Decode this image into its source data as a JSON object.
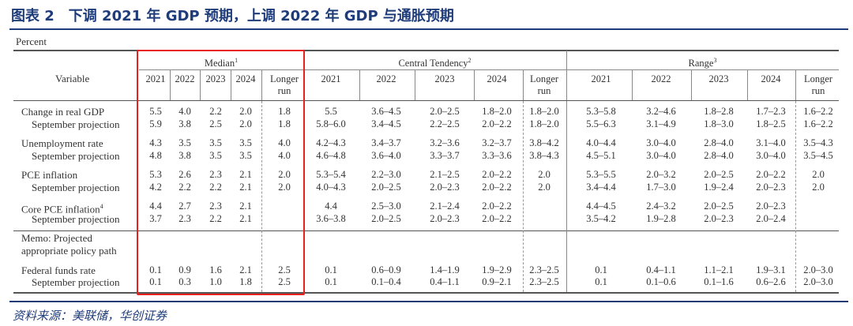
{
  "title": "图表 2　下调 2021 年 GDP 预期，上调 2022 年 GDP 与通胀预期",
  "unit": "Percent",
  "variable_header": "Variable",
  "groups": [
    {
      "name": "Median",
      "note": "1"
    },
    {
      "name": "Central Tendency",
      "note": "2"
    },
    {
      "name": "Range",
      "note": "3"
    }
  ],
  "sub_columns": [
    "2021",
    "2022",
    "2023",
    "2024",
    "Longer run"
  ],
  "rows": [
    {
      "label": "Change in real GDP",
      "indent": false,
      "median": [
        "5.5",
        "4.0",
        "2.2",
        "2.0",
        "1.8"
      ],
      "central": [
        "5.5",
        "3.6–4.5",
        "2.0–2.5",
        "1.8–2.0",
        "1.8–2.0"
      ],
      "range": [
        "5.3–5.8",
        "3.2–4.6",
        "1.8–2.8",
        "1.7–2.3",
        "1.6–2.2"
      ]
    },
    {
      "label": "September projection",
      "indent": true,
      "median": [
        "5.9",
        "3.8",
        "2.5",
        "2.0",
        "1.8"
      ],
      "central": [
        "5.8–6.0",
        "3.4–4.5",
        "2.2–2.5",
        "2.0–2.2",
        "1.8–2.0"
      ],
      "range": [
        "5.5–6.3",
        "3.1–4.9",
        "1.8–3.0",
        "1.8–2.5",
        "1.6–2.2"
      ]
    },
    {
      "label": "Unemployment rate",
      "indent": false,
      "median": [
        "4.3",
        "3.5",
        "3.5",
        "3.5",
        "4.0"
      ],
      "central": [
        "4.2–4.3",
        "3.4–3.7",
        "3.2–3.6",
        "3.2–3.7",
        "3.8–4.2"
      ],
      "range": [
        "4.0–4.4",
        "3.0–4.0",
        "2.8–4.0",
        "3.1–4.0",
        "3.5–4.3"
      ]
    },
    {
      "label": "September projection",
      "indent": true,
      "median": [
        "4.8",
        "3.8",
        "3.5",
        "3.5",
        "4.0"
      ],
      "central": [
        "4.6–4.8",
        "3.6–4.0",
        "3.3–3.7",
        "3.3–3.6",
        "3.8–4.3"
      ],
      "range": [
        "4.5–5.1",
        "3.0–4.0",
        "2.8–4.0",
        "3.0–4.0",
        "3.5–4.5"
      ]
    },
    {
      "label": "PCE inflation",
      "indent": false,
      "median": [
        "5.3",
        "2.6",
        "2.3",
        "2.1",
        "2.0"
      ],
      "central": [
        "5.3–5.4",
        "2.2–3.0",
        "2.1–2.5",
        "2.0–2.2",
        "2.0"
      ],
      "range": [
        "5.3–5.5",
        "2.0–3.2",
        "2.0–2.5",
        "2.0–2.2",
        "2.0"
      ]
    },
    {
      "label": "September projection",
      "indent": true,
      "median": [
        "4.2",
        "2.2",
        "2.2",
        "2.1",
        "2.0"
      ],
      "central": [
        "4.0–4.3",
        "2.0–2.5",
        "2.0–2.3",
        "2.0–2.2",
        "2.0"
      ],
      "range": [
        "3.4–4.4",
        "1.7–3.0",
        "1.9–2.4",
        "2.0–2.3",
        "2.0"
      ]
    },
    {
      "label": "Core PCE inflation",
      "note": "4",
      "indent": false,
      "median": [
        "4.4",
        "2.7",
        "2.3",
        "2.1",
        ""
      ],
      "central": [
        "4.4",
        "2.5–3.0",
        "2.1–2.4",
        "2.0–2.2",
        ""
      ],
      "range": [
        "4.4–4.5",
        "2.4–3.2",
        "2.0–2.5",
        "2.0–2.3",
        ""
      ]
    },
    {
      "label": "September projection",
      "indent": true,
      "median": [
        "3.7",
        "2.3",
        "2.2",
        "2.1",
        ""
      ],
      "central": [
        "3.6–3.8",
        "2.0–2.5",
        "2.0–2.3",
        "2.0–2.2",
        ""
      ],
      "range": [
        "3.5–4.2",
        "1.9–2.8",
        "2.0–2.3",
        "2.0–2.4",
        ""
      ]
    }
  ],
  "memo": [
    "Memo: Projected",
    "appropriate policy path"
  ],
  "memo_rows": [
    {
      "label": "Federal funds rate",
      "indent": false,
      "median": [
        "0.1",
        "0.9",
        "1.6",
        "2.1",
        "2.5"
      ],
      "central": [
        "0.1",
        "0.6–0.9",
        "1.4–1.9",
        "1.9–2.9",
        "2.3–2.5"
      ],
      "range": [
        "0.1",
        "0.4–1.1",
        "1.1–2.1",
        "1.9–3.1",
        "2.0–3.0"
      ]
    },
    {
      "label": "September projection",
      "indent": true,
      "median": [
        "0.1",
        "0.3",
        "1.0",
        "1.8",
        "2.5"
      ],
      "central": [
        "0.1",
        "0.1–0.4",
        "0.4–1.1",
        "0.9–2.1",
        "2.3–2.5"
      ],
      "range": [
        "0.1",
        "0.1–0.6",
        "0.1–1.6",
        "0.6–2.6",
        "2.0–3.0"
      ]
    }
  ],
  "highlight_color": "#e8201e",
  "accent_color": "#1f3c7a",
  "source": "资料来源：美联储，华创证券"
}
